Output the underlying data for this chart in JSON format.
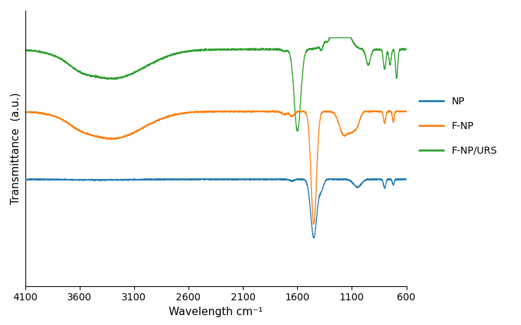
{
  "x_min": 600,
  "x_max": 4100,
  "xlabel": "Wavelength cm⁻¹",
  "ylabel": "Transmittance  (a.u.)",
  "colors": {
    "NP": "#1f77b4",
    "F-NP": "#ff7f0e",
    "F-NP/URS": "#2ca02c"
  },
  "legend_labels": [
    "NP",
    "F-NP",
    "F-NP/URS"
  ],
  "background_color": "#ffffff",
  "figsize": [
    7.38,
    4.61
  ],
  "dpi": 100
}
